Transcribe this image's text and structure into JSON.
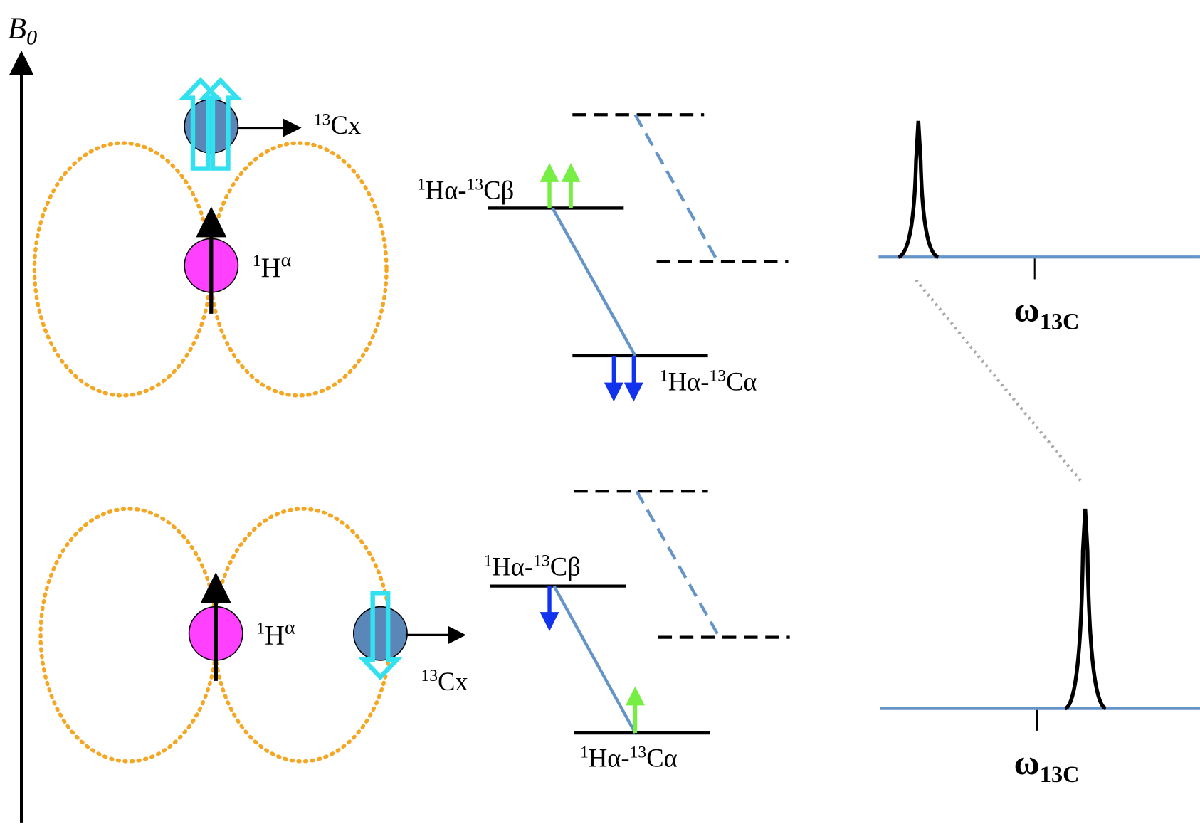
{
  "axis": {
    "label": "B",
    "subscript": "0"
  },
  "top_panel": {
    "carbon": [
      "13",
      "Cx"
    ],
    "proton": [
      "1",
      "H",
      "α"
    ],
    "level_beta": [
      "1",
      "Hα-",
      "13",
      "Cβ"
    ],
    "level_alpha": [
      "1",
      "Hα-",
      "13",
      "Cα"
    ],
    "frequency": [
      "ω",
      "13C"
    ]
  },
  "bottom_panel": {
    "carbon": [
      "13",
      "Cx"
    ],
    "proton": [
      "1",
      "H",
      "α"
    ],
    "level_beta": [
      "1",
      "Hα-",
      "13",
      "Cβ"
    ],
    "level_alpha": [
      "1",
      "Hα-",
      "13",
      "Cα"
    ],
    "frequency": [
      "ω",
      "13C"
    ]
  }
}
